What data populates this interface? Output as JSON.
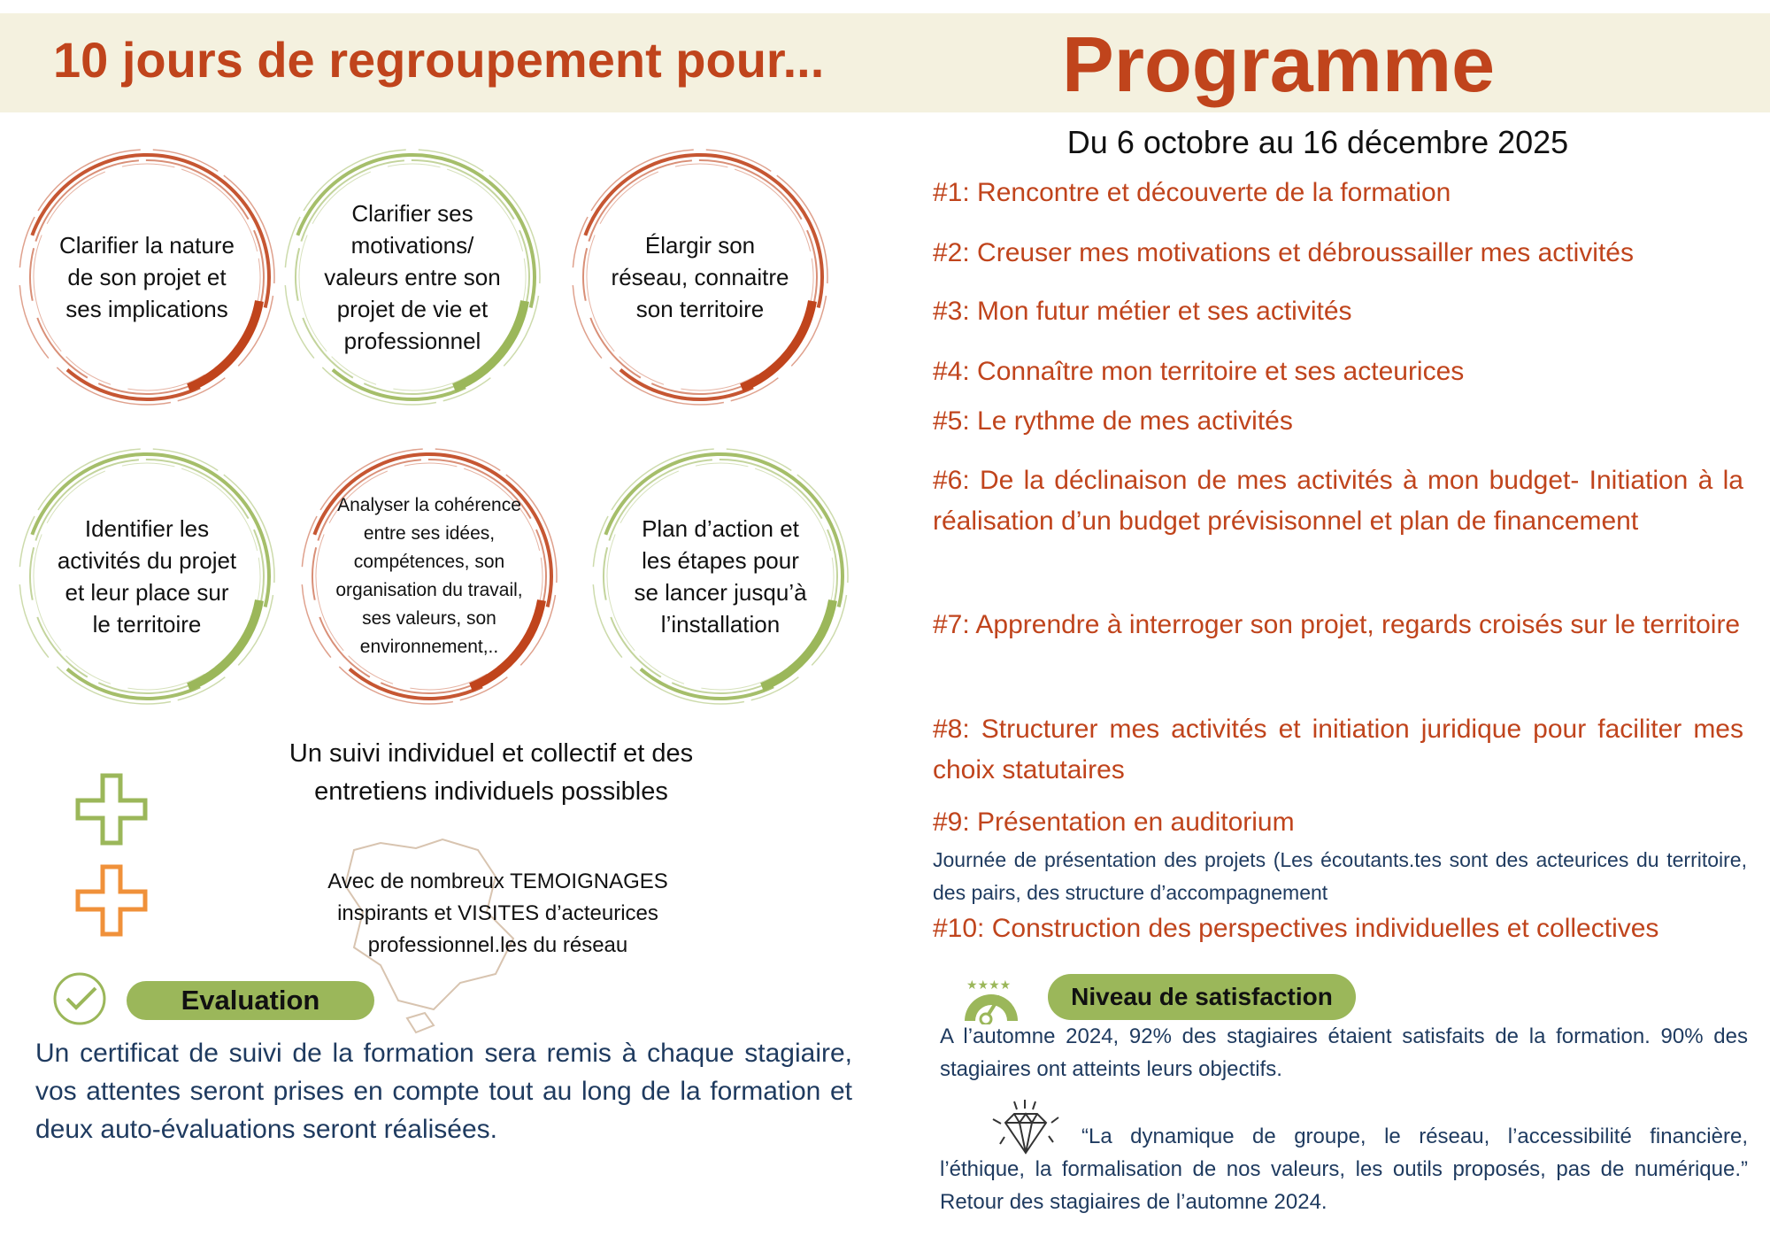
{
  "header": {
    "left_title": "10 jours de regroupement pour...",
    "right_title": "Programme"
  },
  "colors": {
    "accent": "#c0441c",
    "green": "#9bb75a",
    "navy": "#1e3a5f",
    "band": "#f4f1df"
  },
  "goals": [
    {
      "text": "Clarifier la nature de son projet et ses implications",
      "ring": "#c0441c"
    },
    {
      "text": "Clarifier ses motivations/ valeurs entre son projet de vie et professionnel",
      "ring": "#9bb75a"
    },
    {
      "text": "Élargir son réseau, connaitre son territoire",
      "ring": "#c0441c"
    },
    {
      "text": "Identifier les activités du projet et leur place sur le territoire",
      "ring": "#9bb75a"
    },
    {
      "text": "Analyser la cohérence entre ses idées, compétences, son organisation du travail, ses valeurs, son environnement,..",
      "ring": "#c0441c"
    },
    {
      "text": "Plan d’action et les étapes pour se lancer jusqu’à l’installation",
      "ring": "#9bb75a"
    }
  ],
  "extras": {
    "suivi": "Un suivi individuel et collectif et des entretiens individuels possibles",
    "temoignages": "Avec de nombreux TEMOIGNAGES inspirants et VISITES d’acteurices professionnel.les du réseau",
    "plus_icons": [
      "plus-icon-green",
      "plus-icon-orange"
    ]
  },
  "evaluation": {
    "label": "Evaluation",
    "icon": "check-circle-icon",
    "text": "Un certificat de suivi de la formation sera remis à chaque stagiaire, vos attentes seront prises en compte tout au long de la formation et deux auto-évaluations seront réalisées."
  },
  "programme": {
    "dates": "Du 6 octobre au 16 décembre 2025",
    "items": [
      "#1: Rencontre et découverte de la formation",
      "#2: Creuser mes motivations et débroussailler mes activités",
      "#3: Mon futur métier et ses activités",
      "#4: Connaître mon territoire et ses acteurices",
      "#5: Le rythme de mes activités",
      "#6: De la déclinaison de mes activités à mon budget- Initiation à la réalisation d’un budget prévisisonnel et plan de financement",
      "#7: Apprendre à interroger son projet, regards croisés sur le territoire",
      "#8: Structurer mes activités et initiation juridique pour faciliter mes choix statutaires",
      "#9: Présentation en auditorium",
      "#10: Construction des perspectives individuelles et collectives"
    ],
    "item9_detail": "Journée de présentation des projets (Les écoutants.tes sont des acteurices du territoire, des pairs, des structure d’accompagnement"
  },
  "satisfaction": {
    "label": "Niveau de satisfaction",
    "icon": "gauge-stars-icon",
    "text": "A l’automne 2024, 92% des stagiaires étaient  satisfaits de la formation. 90% des stagiaires ont atteints leurs objectifs.",
    "quote_icon": "diamond-icon",
    "quote": "“La dynamique de groupe, le réseau, l’accessibilité financière, l’éthique, la formalisation de nos valeurs, les outils proposés, pas de numérique.” Retour des stagiaires de l’automne 2024."
  }
}
